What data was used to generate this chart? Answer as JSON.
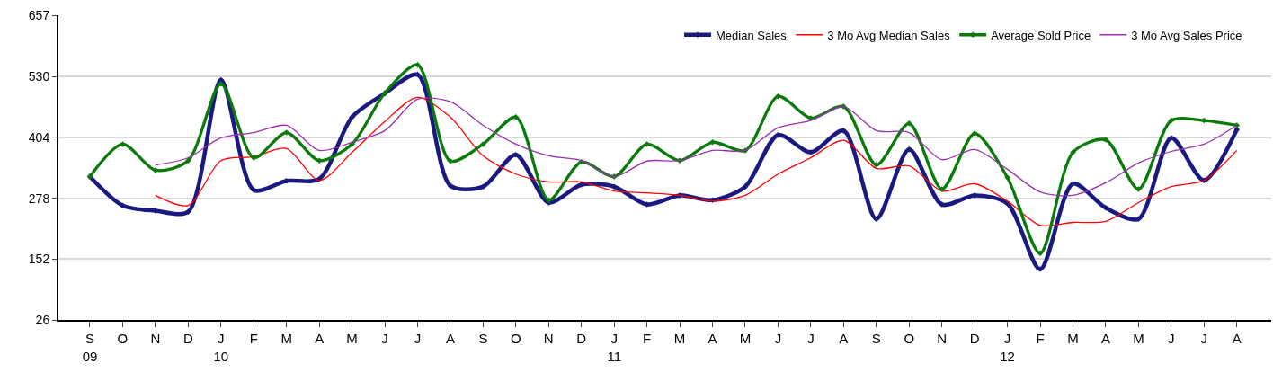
{
  "chart_data": {
    "type": "line",
    "categories": [
      "S\n09",
      "O",
      "N",
      "D",
      "J\n10",
      "F",
      "M",
      "A",
      "M",
      "J",
      "J",
      "A",
      "S",
      "O",
      "N",
      "D",
      "J\n11",
      "F",
      "M",
      "A",
      "M",
      "J",
      "J",
      "A",
      "S",
      "O",
      "N",
      "D",
      "J\n12",
      "F",
      "M",
      "A",
      "M",
      "J",
      "J",
      "A"
    ],
    "series": [
      {
        "name": "Median Sales",
        "color": "#191980",
        "marker": "diamond",
        "values": [
          323,
          263,
          252,
          250,
          523,
          295,
          314,
          318,
          446,
          495,
          534,
          304,
          302,
          368,
          269,
          306,
          302,
          265,
          284,
          274,
          302,
          409,
          373,
          418,
          235,
          379,
          265,
          284,
          267,
          131,
          308,
          258,
          235,
          403,
          315,
          420
        ]
      },
      {
        "name": "3 Mo Avg Median Sales",
        "color": "#ff0000",
        "values": [
          null,
          null,
          284,
          263,
          356,
          364,
          381,
          315,
          373,
          437,
          487,
          446,
          366,
          328,
          312,
          312,
          293,
          289,
          284,
          272,
          284,
          328,
          362,
          398,
          340,
          345,
          293,
          308,
          272,
          222,
          228,
          230,
          269,
          302,
          315,
          377
        ]
      },
      {
        "name": "Average Sold Price",
        "color": "#0a7a0a",
        "marker": "diamond",
        "values": [
          323,
          390,
          336,
          356,
          515,
          362,
          414,
          356,
          390,
          496,
          554,
          355,
          390,
          446,
          274,
          353,
          323,
          390,
          356,
          394,
          377,
          489,
          444,
          468,
          347,
          433,
          297,
          412,
          321,
          164,
          373,
          399,
          297,
          439,
          439,
          429
        ]
      },
      {
        "name": "3 Mo Avg Sales Price",
        "color": "#9b30b0",
        "values": [
          null,
          null,
          347,
          362,
          403,
          414,
          429,
          377,
          394,
          418,
          483,
          478,
          429,
          390,
          366,
          356,
          323,
          355,
          356,
          377,
          377,
          424,
          439,
          468,
          418,
          414,
          358,
          379,
          338,
          291,
          284,
          310,
          351,
          375,
          390,
          429
        ]
      }
    ],
    "ylim": [
      26,
      657
    ],
    "yticks": [
      26,
      152,
      278,
      404,
      530,
      657
    ],
    "grid": "y",
    "legend": "top right"
  }
}
